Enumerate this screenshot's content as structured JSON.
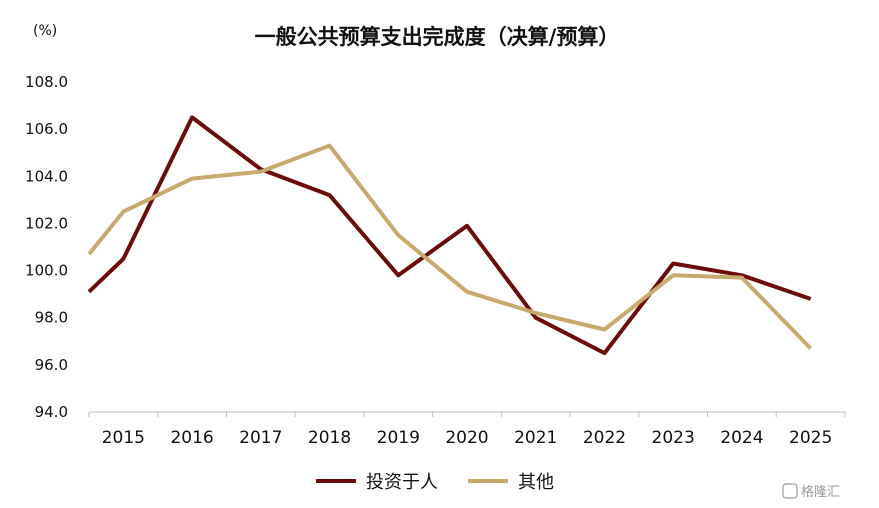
{
  "chart_data": {
    "type": "line",
    "title": "一般公共预算支出完成度（决算/预算）",
    "unit_label": "(%)",
    "xlabel": "",
    "ylabel": "",
    "x": [
      "2015",
      "2016",
      "2017",
      "2018",
      "2019",
      "2020",
      "2021",
      "2022",
      "2023",
      "2024",
      "2025"
    ],
    "ylim": [
      94.0,
      108.0
    ],
    "yticks": [
      "94.0",
      "96.0",
      "98.0",
      "100.0",
      "102.0",
      "104.0",
      "106.0",
      "108.0"
    ],
    "grid": false,
    "legend_position": "bottom",
    "series": [
      {
        "name": "投资于人",
        "color": "#6b0b0b",
        "start": 99.1,
        "values": [
          100.5,
          106.5,
          104.3,
          103.2,
          99.8,
          101.9,
          98.0,
          96.5,
          100.3,
          99.8,
          98.8
        ]
      },
      {
        "name": "其他",
        "color": "#c8a96e",
        "start": 100.7,
        "values": [
          102.5,
          103.9,
          104.2,
          105.3,
          101.5,
          99.1,
          98.2,
          97.5,
          99.8,
          99.7,
          96.7
        ]
      }
    ]
  },
  "watermark": "格隆汇"
}
